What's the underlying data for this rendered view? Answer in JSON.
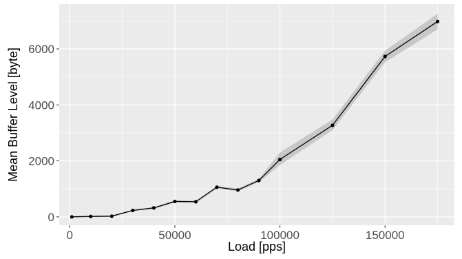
{
  "chart_data": {
    "type": "line",
    "title": "",
    "xlabel": "Load [pps]",
    "ylabel": "Mean Buffer Level [byte]",
    "xlim": [
      -5000,
      183000
    ],
    "ylim": [
      -300,
      7600
    ],
    "x_ticks": [
      0,
      50000,
      100000,
      150000
    ],
    "x_tick_labels": [
      "0",
      "50000",
      "100000",
      "150000"
    ],
    "y_ticks": [
      0,
      2000,
      4000,
      6000
    ],
    "y_tick_labels": [
      "0",
      "2000",
      "4000",
      "6000"
    ],
    "grid": true,
    "legend": "none",
    "series": [
      {
        "x": [
          1000,
          10000,
          20000,
          30000,
          40000,
          50000,
          60000,
          70000,
          80000,
          90000,
          100000,
          125000,
          150000,
          175000
        ],
        "y": [
          0,
          15,
          25,
          230,
          320,
          550,
          540,
          1060,
          960,
          1300,
          2050,
          3270,
          5730,
          6980
        ],
        "lower": [
          -20,
          -10,
          0,
          200,
          290,
          510,
          500,
          1010,
          910,
          1240,
          1850,
          3100,
          5520,
          6700
        ],
        "upper": [
          20,
          40,
          50,
          260,
          350,
          590,
          580,
          1110,
          1010,
          1360,
          2300,
          3480,
          5940,
          7260
        ]
      }
    ],
    "colors": {
      "panel": "#ebebeb",
      "grid": "#ffffff",
      "line": "#000000",
      "ribbon": "#c4c4c4",
      "tick_label": "#4d4d4d"
    }
  }
}
